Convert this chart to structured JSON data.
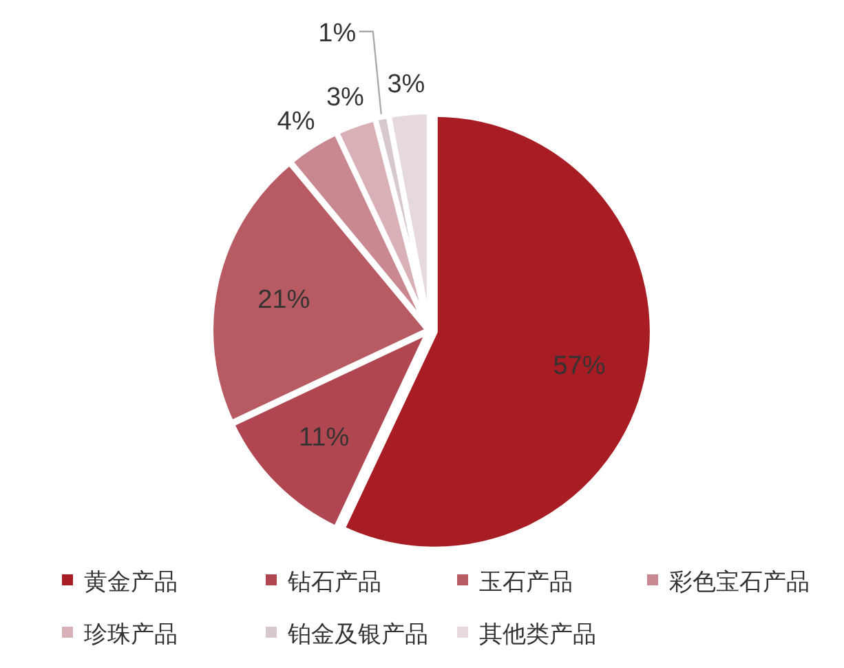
{
  "chart_data": {
    "type": "pie",
    "categories": [
      "黄金产品",
      "钻石产品",
      "玉石产品",
      "彩色宝石产品",
      "珍珠产品",
      "铂金及银产品",
      "其他类产品"
    ],
    "values": [
      57,
      11,
      21,
      4,
      3,
      1,
      3
    ],
    "value_labels": [
      "57%",
      "11%",
      "21%",
      "4%",
      "3%",
      "1%",
      "3%"
    ],
    "colors": [
      "#a81c24",
      "#b0464f",
      "#b85a62",
      "#c98890",
      "#d9b0b5",
      "#d6c8cb",
      "#e5d9db"
    ],
    "legend": "bottom"
  }
}
